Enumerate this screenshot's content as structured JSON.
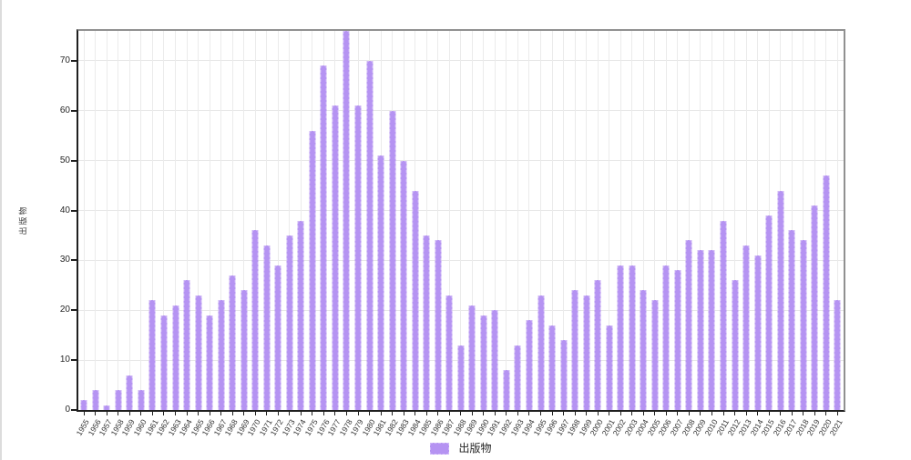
{
  "chart_data": {
    "type": "bar",
    "title": "",
    "xlabel": "",
    "ylabel": "出版物",
    "series_name": "出版物",
    "bar_color": "#b593f2",
    "grid": true,
    "legend_position": "bottom",
    "ylim": [
      0,
      76
    ],
    "yticks": [
      0,
      10,
      20,
      30,
      40,
      50,
      60,
      70
    ],
    "categories": [
      "1955",
      "1956",
      "1957",
      "1958",
      "1959",
      "1960",
      "1961",
      "1962",
      "1963",
      "1964",
      "1965",
      "1966",
      "1967",
      "1968",
      "1969",
      "1970",
      "1971",
      "1972",
      "1973",
      "1974",
      "1975",
      "1976",
      "1977",
      "1978",
      "1979",
      "1980",
      "1981",
      "1982",
      "1983",
      "1984",
      "1985",
      "1986",
      "1987",
      "1988",
      "1989",
      "1990",
      "1991",
      "1992",
      "1993",
      "1994",
      "1995",
      "1996",
      "1997",
      "1998",
      "1999",
      "2000",
      "2001",
      "2002",
      "2003",
      "2004",
      "2005",
      "2006",
      "2007",
      "2008",
      "2009",
      "2010",
      "2011",
      "2012",
      "2013",
      "2014",
      "2015",
      "2016",
      "2017",
      "2018",
      "2019",
      "2020",
      "2021"
    ],
    "values": [
      2,
      4,
      1,
      4,
      7,
      4,
      22,
      19,
      21,
      26,
      23,
      19,
      22,
      27,
      24,
      36,
      33,
      29,
      35,
      38,
      56,
      69,
      61,
      76,
      61,
      70,
      51,
      60,
      50,
      44,
      35,
      34,
      23,
      13,
      21,
      19,
      20,
      8,
      13,
      18,
      23,
      17,
      14,
      24,
      23,
      26,
      17,
      29,
      29,
      24,
      22,
      29,
      28,
      34,
      32,
      32,
      38,
      26,
      33,
      31,
      39,
      44,
      36,
      34,
      41,
      47,
      22
    ]
  },
  "legend": {
    "label": "出版物"
  }
}
